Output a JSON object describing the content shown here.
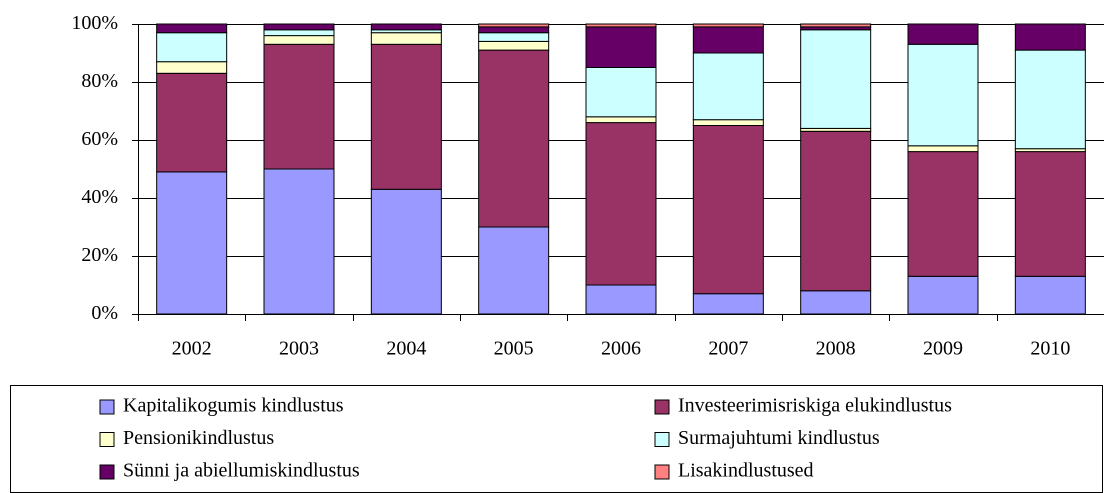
{
  "chart_data": {
    "type": "bar",
    "stacked": true,
    "categories": [
      "2002",
      "2003",
      "2004",
      "2005",
      "2006",
      "2007",
      "2008",
      "2009",
      "2010"
    ],
    "series": [
      {
        "name": "Kapitalikogumis kindlustus",
        "color": "#9999ff",
        "values": [
          49,
          50,
          43,
          30,
          10,
          7,
          8,
          13,
          13
        ]
      },
      {
        "name": "Investeerimisriskiga elukindlustus",
        "color": "#993366",
        "values": [
          34,
          43,
          50,
          61,
          56,
          58,
          55,
          43,
          43
        ]
      },
      {
        "name": "Pensionikindlustus",
        "color": "#ffffcc",
        "values": [
          4,
          3,
          4,
          3,
          2,
          2,
          1,
          2,
          1
        ]
      },
      {
        "name": "Surmajuhtumi kindlustus",
        "color": "#ccffff",
        "values": [
          10,
          2,
          1,
          3,
          17,
          23,
          34,
          35,
          34
        ]
      },
      {
        "name": "Sünni ja abiellumiskindlustus",
        "color": "#660066",
        "values": [
          3,
          2,
          2,
          2,
          14,
          9,
          1,
          7,
          9
        ]
      },
      {
        "name": "Lisakindlustused",
        "color": "#ff8080",
        "values": [
          0,
          0,
          0,
          1,
          1,
          1,
          1,
          0,
          0
        ]
      }
    ],
    "ylim": [
      0,
      100
    ],
    "yticks": [
      {
        "value": 0,
        "label": "0%"
      },
      {
        "value": 20,
        "label": "20%"
      },
      {
        "value": 40,
        "label": "40%"
      },
      {
        "value": 60,
        "label": "60%"
      },
      {
        "value": 80,
        "label": "80%"
      },
      {
        "value": 100,
        "label": "100%"
      }
    ],
    "grid": true,
    "legend": "bottom"
  }
}
